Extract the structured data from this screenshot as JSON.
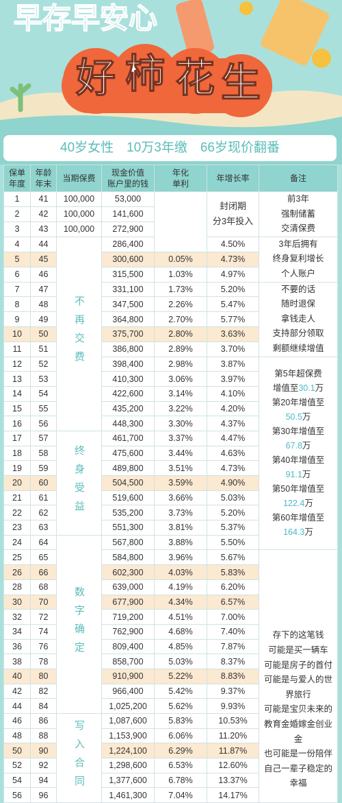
{
  "header": {
    "slogan": "早存早安心",
    "title_chars": [
      "好",
      "柿",
      "花",
      "生"
    ],
    "subtitle": "40岁女性　10万3年缴　66岁现价翻番"
  },
  "table": {
    "columns": [
      [
        "保单",
        "年度"
      ],
      [
        "年龄",
        "年末"
      ],
      [
        "当期保费"
      ],
      [
        "现金价值",
        "账户里的钱"
      ],
      [
        "年化",
        "单利"
      ],
      [
        "年增长率"
      ],
      [
        "备注"
      ]
    ],
    "rows": [
      [
        1,
        41,
        "100,000",
        "53,000",
        null,
        null
      ],
      [
        2,
        42,
        "100,000",
        "141,600",
        null,
        null
      ],
      [
        3,
        43,
        "100,000",
        "272,900",
        null,
        null
      ],
      [
        4,
        44,
        null,
        "286,400",
        null,
        "4.50%"
      ],
      [
        5,
        45,
        null,
        "300,600",
        "0.05%",
        "4.73%"
      ],
      [
        6,
        46,
        null,
        "315,500",
        "1.03%",
        "4.97%"
      ],
      [
        7,
        47,
        null,
        "331,100",
        "1.73%",
        "5.20%"
      ],
      [
        8,
        48,
        null,
        "347,500",
        "2.26%",
        "5.47%"
      ],
      [
        9,
        49,
        null,
        "364,800",
        "2.70%",
        "5.77%"
      ],
      [
        10,
        50,
        null,
        "375,700",
        "2.80%",
        "3.63%"
      ],
      [
        11,
        51,
        null,
        "386,800",
        "2.89%",
        "3.70%"
      ],
      [
        12,
        52,
        null,
        "398,400",
        "2.98%",
        "3.87%"
      ],
      [
        13,
        53,
        null,
        "410,300",
        "3.06%",
        "3.97%"
      ],
      [
        14,
        54,
        null,
        "422,600",
        "3.14%",
        "4.10%"
      ],
      [
        15,
        55,
        null,
        "435,200",
        "3.22%",
        "4.20%"
      ],
      [
        16,
        56,
        null,
        "448,300",
        "3.30%",
        "4.37%"
      ],
      [
        17,
        57,
        null,
        "461,700",
        "3.37%",
        "4.47%"
      ],
      [
        18,
        58,
        null,
        "475,600",
        "3.44%",
        "4.63%"
      ],
      [
        19,
        59,
        null,
        "489,800",
        "3.51%",
        "4.73%"
      ],
      [
        20,
        60,
        null,
        "504,500",
        "3.59%",
        "4.90%"
      ],
      [
        21,
        61,
        null,
        "519,600",
        "3.66%",
        "5.03%"
      ],
      [
        22,
        62,
        null,
        "535,200",
        "3.73%",
        "5.20%"
      ],
      [
        23,
        63,
        null,
        "551,300",
        "3.81%",
        "5.37%"
      ],
      [
        24,
        64,
        null,
        "567,800",
        "3.88%",
        "5.50%"
      ],
      [
        25,
        65,
        null,
        "584,800",
        "3.96%",
        "5.67%"
      ],
      [
        26,
        66,
        null,
        "602,300",
        "4.03%",
        "5.83%"
      ],
      [
        28,
        68,
        null,
        "639,000",
        "4.19%",
        "6.20%"
      ],
      [
        30,
        70,
        null,
        "677,900",
        "4.34%",
        "6.57%"
      ],
      [
        32,
        72,
        null,
        "719,200",
        "4.51%",
        "7.00%"
      ],
      [
        34,
        74,
        null,
        "762,900",
        "4.68%",
        "7.40%"
      ],
      [
        36,
        76,
        null,
        "809,400",
        "4.85%",
        "7.87%"
      ],
      [
        38,
        78,
        null,
        "858,700",
        "5.03%",
        "8.37%"
      ],
      [
        40,
        80,
        null,
        "910,900",
        "5.22%",
        "8.83%"
      ],
      [
        42,
        82,
        null,
        "966,400",
        "5.42%",
        "9.37%"
      ],
      [
        44,
        84,
        null,
        "1,025,200",
        "5.62%",
        "9.93%"
      ],
      [
        46,
        86,
        null,
        "1,087,600",
        "5.83%",
        "10.53%"
      ],
      [
        48,
        88,
        null,
        "1,153,900",
        "6.06%",
        "11.20%"
      ],
      [
        50,
        90,
        null,
        "1,224,100",
        "6.29%",
        "11.87%"
      ],
      [
        52,
        92,
        null,
        "1,298,600",
        "6.53%",
        "12.60%"
      ],
      [
        54,
        94,
        null,
        "1,377,600",
        "6.78%",
        "13.37%"
      ],
      [
        56,
        96,
        null,
        "1,461,300",
        "7.04%",
        "14.17%"
      ]
    ],
    "highlight_rows": [
      4,
      9,
      19,
      25,
      27,
      32,
      37
    ],
    "premium_notes": [
      "不再交费",
      "终身受益",
      "数字确定",
      "写入合同"
    ],
    "growth_note": [
      "封闭期",
      "分3年投入"
    ],
    "remarks": [
      [
        "前3年",
        "强制储蓄",
        "交清保费"
      ],
      [
        "3年后拥有",
        "终身复利增长",
        "个人账户"
      ],
      [
        "不要的话",
        "随时退保",
        "拿钱走人",
        "支持部分领取",
        "剩额继续增值"
      ],
      [
        "第5年超保费",
        {
          "text": "增值至",
          "amount": 30.1,
          "unit": "万"
        },
        "第20年增值至",
        {
          "amount": 50.5,
          "unit": "万"
        },
        "第30年增值至",
        {
          "amount": 67.8,
          "unit": "万"
        },
        "第40年增值至",
        {
          "amount": 91.1,
          "unit": "万"
        },
        "第50年增值至",
        {
          "amount": 122.4,
          "unit": "万"
        },
        "第60年增值至",
        {
          "amount": 164.3,
          "unit": "万"
        }
      ],
      [
        "存下的这笔钱",
        "可能是买一辆车",
        "可能是房子的首付",
        "可能是与爱人的世",
        "界旅行",
        "可能是宝贝未来的",
        "教育金婚嫁金创业",
        "金",
        "也可能是一份陪伴",
        "自己一辈子稳定的",
        "幸福"
      ]
    ]
  }
}
